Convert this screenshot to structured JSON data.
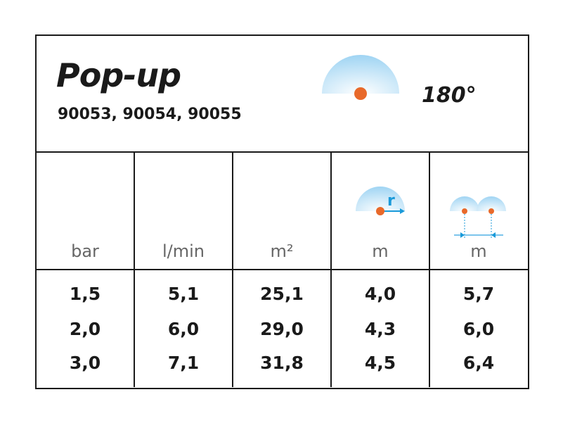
{
  "header": {
    "title": "Pop-up",
    "models": "90053, 90054, 90055",
    "angle": "180°",
    "icon": "half-circle-spray-icon"
  },
  "colors": {
    "spray": "#a9d9f5",
    "nozzle": "#e8692a",
    "arrow": "#1a9ad9",
    "border": "#1a1a1a"
  },
  "columns": [
    {
      "unit": "bar"
    },
    {
      "unit": "l/min"
    },
    {
      "unit": "m²"
    },
    {
      "unit": "m",
      "icon": "radius-icon",
      "icon_label": "r"
    },
    {
      "unit": "m",
      "icon": "spacing-icon"
    }
  ],
  "rows": [
    [
      "1,5",
      "5,1",
      "25,1",
      "4,0",
      "5,7"
    ],
    [
      "2,0",
      "6,0",
      "29,0",
      "4,3",
      "6,0"
    ],
    [
      "3,0",
      "7,1",
      "31,8",
      "4,5",
      "6,4"
    ]
  ]
}
